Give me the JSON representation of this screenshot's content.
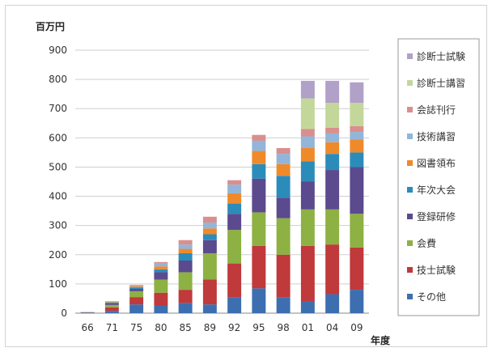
{
  "chart_data": {
    "type": "bar",
    "stacked": true,
    "ylabel": "百万円",
    "xlabel": "年度",
    "ylim": [
      0,
      900
    ],
    "yticks": [
      0,
      100,
      200,
      300,
      400,
      500,
      600,
      700,
      800,
      900
    ],
    "grid": true,
    "legend_position": "right",
    "categories": [
      "66",
      "71",
      "75",
      "80",
      "85",
      "89",
      "92",
      "95",
      "98",
      "01",
      "04",
      "09"
    ],
    "series": [
      {
        "name": "その他",
        "color": "#3d6fb0",
        "values": [
          2,
          8,
          30,
          25,
          35,
          30,
          55,
          85,
          55,
          40,
          65,
          80
        ]
      },
      {
        "name": "技士試験",
        "color": "#c0393b",
        "values": [
          1,
          12,
          25,
          45,
          45,
          85,
          115,
          145,
          145,
          190,
          170,
          145
        ]
      },
      {
        "name": "会費",
        "color": "#8db143",
        "values": [
          1,
          8,
          20,
          45,
          60,
          90,
          115,
          115,
          125,
          125,
          120,
          115
        ]
      },
      {
        "name": "登録研修",
        "color": "#5b4a8e",
        "values": [
          0,
          5,
          8,
          25,
          40,
          45,
          55,
          115,
          70,
          95,
          135,
          160
        ]
      },
      {
        "name": "年次大会",
        "color": "#2b8cba",
        "values": [
          0,
          3,
          5,
          10,
          25,
          20,
          35,
          50,
          75,
          70,
          55,
          50
        ]
      },
      {
        "name": "図書領布",
        "color": "#ef8a2a",
        "values": [
          0,
          2,
          4,
          10,
          15,
          20,
          35,
          45,
          40,
          45,
          40,
          45
        ]
      },
      {
        "name": "技術講習",
        "color": "#92b5d9",
        "values": [
          0,
          2,
          3,
          10,
          15,
          20,
          30,
          35,
          35,
          40,
          30,
          25
        ]
      },
      {
        "name": "会誌刊行",
        "color": "#d98f8e",
        "values": [
          0,
          1,
          2,
          5,
          15,
          20,
          15,
          20,
          20,
          25,
          20,
          20
        ]
      },
      {
        "name": "診断士講習",
        "color": "#c4d79b",
        "values": [
          0,
          0,
          0,
          0,
          0,
          0,
          0,
          0,
          0,
          105,
          85,
          80
        ]
      },
      {
        "name": "診断士試験",
        "color": "#b1a0c7",
        "values": [
          0,
          0,
          0,
          0,
          0,
          0,
          0,
          0,
          0,
          60,
          75,
          70
        ]
      }
    ]
  }
}
